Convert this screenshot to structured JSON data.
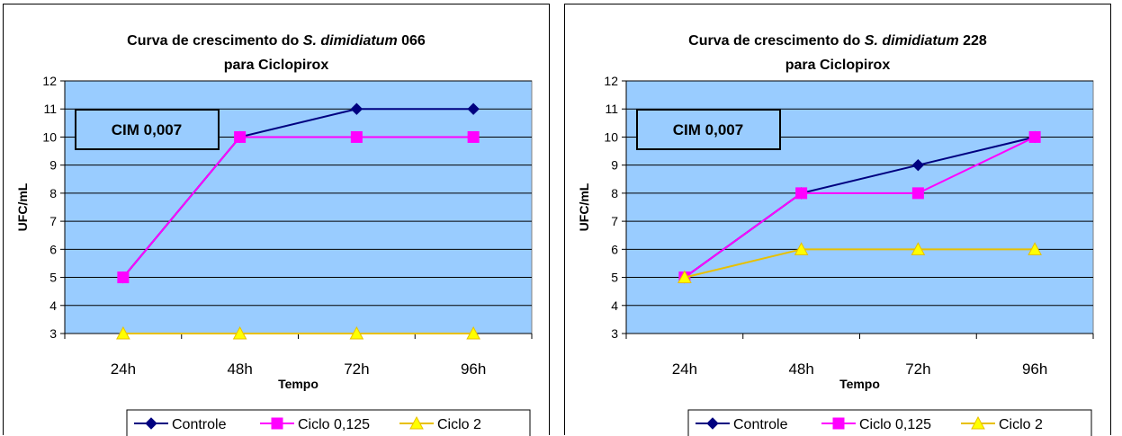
{
  "chart_data": [
    {
      "type": "line",
      "title_line1_prefix": "Curva de crescimento do ",
      "title_line1_italic": "S. dimidiatum",
      "title_line1_suffix": " 066",
      "title_line2": "para Ciclopirox",
      "xlabel": "Tempo",
      "ylabel": "UFC/mL",
      "categories": [
        "24h",
        "48h",
        "72h",
        "96h"
      ],
      "ylim": [
        3,
        12
      ],
      "yticks": [
        3,
        4,
        5,
        6,
        7,
        8,
        9,
        10,
        11,
        12
      ],
      "grid": true,
      "legend_position": "bottom",
      "annotation": "CIM 0,007",
      "plot_background": "#99CCFF",
      "series": [
        {
          "name": "Controle",
          "values": [
            5,
            10,
            11,
            11
          ],
          "color": "#000080",
          "marker": "diamond"
        },
        {
          "name": "Ciclo 0,125",
          "values": [
            5,
            10,
            10,
            10
          ],
          "color": "#FF00FF",
          "marker": "square"
        },
        {
          "name": "Ciclo 2",
          "values": [
            3,
            3,
            3,
            3
          ],
          "color": "#FFFF00",
          "line_color": "#E8C000",
          "marker": "triangle"
        }
      ]
    },
    {
      "type": "line",
      "title_line1_prefix": "Curva de crescimento do ",
      "title_line1_italic": "S. dimidiatum",
      "title_line1_suffix": " 228",
      "title_line2": "para Ciclopirox",
      "xlabel": "Tempo",
      "ylabel": "UFC/mL",
      "categories": [
        "24h",
        "48h",
        "72h",
        "96h"
      ],
      "ylim": [
        3,
        12
      ],
      "yticks": [
        3,
        4,
        5,
        6,
        7,
        8,
        9,
        10,
        11,
        12
      ],
      "grid": true,
      "legend_position": "bottom",
      "annotation": "CIM 0,007",
      "plot_background": "#99CCFF",
      "series": [
        {
          "name": "Controle",
          "values": [
            5,
            8,
            9,
            10
          ],
          "color": "#000080",
          "marker": "diamond"
        },
        {
          "name": "Ciclo 0,125",
          "values": [
            5,
            8,
            8,
            10
          ],
          "color": "#FF00FF",
          "marker": "square"
        },
        {
          "name": "Ciclo 2",
          "values": [
            5,
            6,
            6,
            6
          ],
          "color": "#FFFF00",
          "line_color": "#E8C000",
          "marker": "triangle"
        }
      ]
    }
  ]
}
